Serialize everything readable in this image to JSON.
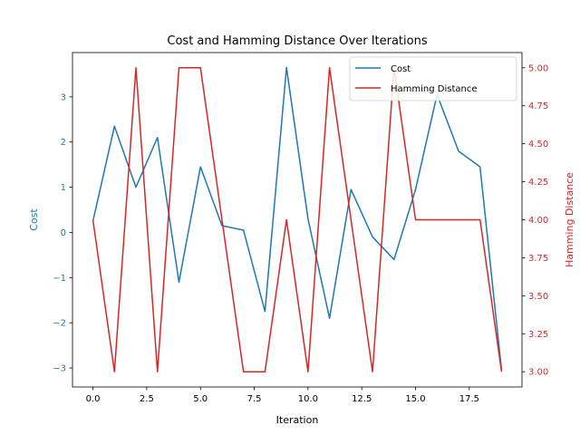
{
  "chart_data": {
    "type": "line",
    "title": "Cost and Hamming Distance Over Iterations",
    "xlabel": "Iteration",
    "ylabel_left": "Cost",
    "ylabel_right": "Hamming Distance",
    "x": [
      0,
      1,
      2,
      3,
      4,
      5,
      6,
      7,
      8,
      9,
      10,
      11,
      12,
      13,
      14,
      15,
      16,
      17,
      18,
      19
    ],
    "xlim": [
      -0.95,
      19.95
    ],
    "xticks": [
      0,
      2.5,
      5,
      7.5,
      10,
      12.5,
      15,
      17.5
    ],
    "xtick_labels": [
      "0.0",
      "2.5",
      "5.0",
      "7.5",
      "10.0",
      "12.5",
      "15.0",
      "17.5"
    ],
    "left_axis": {
      "ylim": [
        -3.42,
        3.98
      ],
      "ticks": [
        -3,
        -2,
        -1,
        0,
        1,
        2,
        3
      ],
      "tick_labels": [
        "−3",
        "−2",
        "−1",
        "0",
        "1",
        "2",
        "3"
      ],
      "color": "#1f77b4"
    },
    "right_axis": {
      "ylim": [
        2.9,
        5.1
      ],
      "ticks": [
        3.0,
        3.25,
        3.5,
        3.75,
        4.0,
        4.25,
        4.5,
        4.75,
        5.0
      ],
      "tick_labels": [
        "3.00",
        "3.25",
        "3.50",
        "3.75",
        "4.00",
        "4.25",
        "4.50",
        "4.75",
        "5.00"
      ],
      "color": "#d62728"
    },
    "series": [
      {
        "name": "Cost",
        "axis": "left",
        "color": "#1f77b4",
        "values": [
          0.25,
          2.35,
          1.0,
          2.1,
          -1.1,
          1.45,
          0.15,
          0.05,
          -1.75,
          3.65,
          0.3,
          -1.9,
          0.95,
          -0.1,
          -0.6,
          0.95,
          3.05,
          1.8,
          1.45,
          -3.05
        ]
      },
      {
        "name": "Hamming Distance",
        "axis": "right",
        "color": "#d62728",
        "values": [
          4,
          3,
          5,
          3,
          5,
          5,
          4,
          3,
          3,
          4,
          3,
          5,
          4,
          3,
          5,
          4,
          4,
          4,
          4,
          3
        ]
      }
    ],
    "legend_position": "top-right",
    "grid": false
  }
}
